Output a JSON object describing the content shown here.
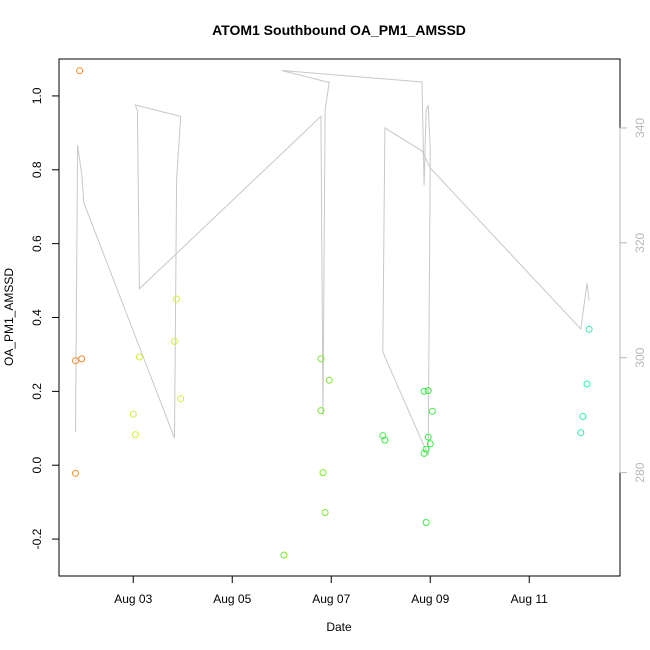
{
  "chart_data": {
    "type": "scatter",
    "title": "ATOM1 Southbound OA_PM1_AMSSD",
    "xlabel": "Date",
    "ylabel": "OA_PM1_AMSSD",
    "xlim": [
      "2016-08-01T12:00",
      "2016-08-12T20:00"
    ],
    "ylim": [
      -0.3,
      1.1
    ],
    "x_ticks": [
      {
        "value": "2016-08-03",
        "label": "Aug 03"
      },
      {
        "value": "2016-08-05",
        "label": "Aug 05"
      },
      {
        "value": "2016-08-07",
        "label": "Aug 07"
      },
      {
        "value": "2016-08-09",
        "label": "Aug 09"
      },
      {
        "value": "2016-08-11",
        "label": "Aug 11"
      }
    ],
    "y_ticks": [
      -0.2,
      0.0,
      0.2,
      0.4,
      0.6,
      0.8,
      1.0
    ],
    "y2_ticks": [
      280,
      300,
      320,
      340
    ],
    "y2lim": [
      262,
      352
    ],
    "grid": false,
    "points": [
      {
        "x": "2016-08-01T20:00",
        "y": 0.283,
        "color": "#f28c2a"
      },
      {
        "x": "2016-08-01T20:00",
        "y": -0.022,
        "color": "#f28c2a"
      },
      {
        "x": "2016-08-01T22:00",
        "y": 1.068,
        "color": "#f28c2a"
      },
      {
        "x": "2016-08-01T23:00",
        "y": 0.288,
        "color": "#f28c2a"
      },
      {
        "x": "2016-08-03T00:00",
        "y": 0.138,
        "color": "#d6ee3a"
      },
      {
        "x": "2016-08-03T01:00",
        "y": 0.083,
        "color": "#d6ee3a"
      },
      {
        "x": "2016-08-03T03:00",
        "y": 0.293,
        "color": "#d6ee3a"
      },
      {
        "x": "2016-08-03T20:00",
        "y": 0.335,
        "color": "#d6ee3a"
      },
      {
        "x": "2016-08-03T21:00",
        "y": 0.45,
        "color": "#d6ee3a"
      },
      {
        "x": "2016-08-03T23:00",
        "y": 0.18,
        "color": "#d6ee3a"
      },
      {
        "x": "2016-08-06T01:00",
        "y": -0.243,
        "color": "#7ee82e"
      },
      {
        "x": "2016-08-06T19:00",
        "y": 0.288,
        "color": "#7ee82e"
      },
      {
        "x": "2016-08-06T19:00",
        "y": 0.148,
        "color": "#7ee82e"
      },
      {
        "x": "2016-08-06T20:00",
        "y": -0.02,
        "color": "#7ee82e"
      },
      {
        "x": "2016-08-06T21:00",
        "y": -0.128,
        "color": "#7ee82e"
      },
      {
        "x": "2016-08-06T23:00",
        "y": 0.23,
        "color": "#7ee82e"
      },
      {
        "x": "2016-08-08T01:00",
        "y": 0.08,
        "color": "#3eea4a"
      },
      {
        "x": "2016-08-08T02:00",
        "y": 0.068,
        "color": "#3eea4a"
      },
      {
        "x": "2016-08-08T21:00",
        "y": 0.032,
        "color": "#3eea4a"
      },
      {
        "x": "2016-08-08T21:00",
        "y": 0.2,
        "color": "#3eea4a"
      },
      {
        "x": "2016-08-08T22:00",
        "y": -0.155,
        "color": "#3eea4a"
      },
      {
        "x": "2016-08-08T22:00",
        "y": 0.043,
        "color": "#3eea4a"
      },
      {
        "x": "2016-08-08T23:00",
        "y": 0.076,
        "color": "#3eea4a"
      },
      {
        "x": "2016-08-08T23:00",
        "y": 0.202,
        "color": "#3eea4a"
      },
      {
        "x": "2016-08-09T00:00",
        "y": 0.058,
        "color": "#3eea4a"
      },
      {
        "x": "2016-08-09T01:00",
        "y": 0.146,
        "color": "#3eea4a"
      },
      {
        "x": "2016-08-12T01:00",
        "y": 0.088,
        "color": "#2ef0a6"
      },
      {
        "x": "2016-08-12T02:00",
        "y": 0.132,
        "color": "#2ef0a6"
      },
      {
        "x": "2016-08-12T04:00",
        "y": 0.22,
        "color": "#2ef0a6"
      },
      {
        "x": "2016-08-12T05:00",
        "y": 0.368,
        "color": "#2ef0a6"
      }
    ],
    "line_series": {
      "axis": "right",
      "color": "#c8c8c8",
      "points": [
        {
          "x": "2016-08-01T20:00",
          "y": 287
        },
        {
          "x": "2016-08-01T21:00",
          "y": 337
        },
        {
          "x": "2016-08-01T23:00",
          "y": 332
        },
        {
          "x": "2016-08-02T00:00",
          "y": 327
        },
        {
          "x": "2016-08-03T20:00",
          "y": 286
        },
        {
          "x": "2016-08-03T21:00",
          "y": 331
        },
        {
          "x": "2016-08-03T23:00",
          "y": 342
        },
        {
          "x": "2016-08-03T01:00",
          "y": 344
        },
        {
          "x": "2016-08-03T02:00",
          "y": 343
        },
        {
          "x": "2016-08-03T03:00",
          "y": 312
        },
        {
          "x": "2016-08-06T19:00",
          "y": 342
        },
        {
          "x": "2016-08-06T20:00",
          "y": 290
        },
        {
          "x": "2016-08-06T21:00",
          "y": 343
        },
        {
          "x": "2016-08-06T23:00",
          "y": 348
        },
        {
          "x": "2016-08-06T22:00",
          "y": 348
        },
        {
          "x": "2016-08-06T00:00",
          "y": 350
        },
        {
          "x": "2016-08-08T20:00",
          "y": 348
        },
        {
          "x": "2016-08-08T21:00",
          "y": 330
        },
        {
          "x": "2016-08-08T22:00",
          "y": 343
        },
        {
          "x": "2016-08-08T23:00",
          "y": 344
        },
        {
          "x": "2016-08-09T00:00",
          "y": 336
        },
        {
          "x": "2016-08-08T23:00",
          "y": 283
        },
        {
          "x": "2016-08-08T01:00",
          "y": 301
        },
        {
          "x": "2016-08-08T02:00",
          "y": 340
        },
        {
          "x": "2016-08-08T20:00",
          "y": 336
        },
        {
          "x": "2016-08-09T00:00",
          "y": 333
        },
        {
          "x": "2016-08-12T01:00",
          "y": 305
        },
        {
          "x": "2016-08-12T04:00",
          "y": 313
        },
        {
          "x": "2016-08-12T05:00",
          "y": 310
        }
      ]
    }
  }
}
